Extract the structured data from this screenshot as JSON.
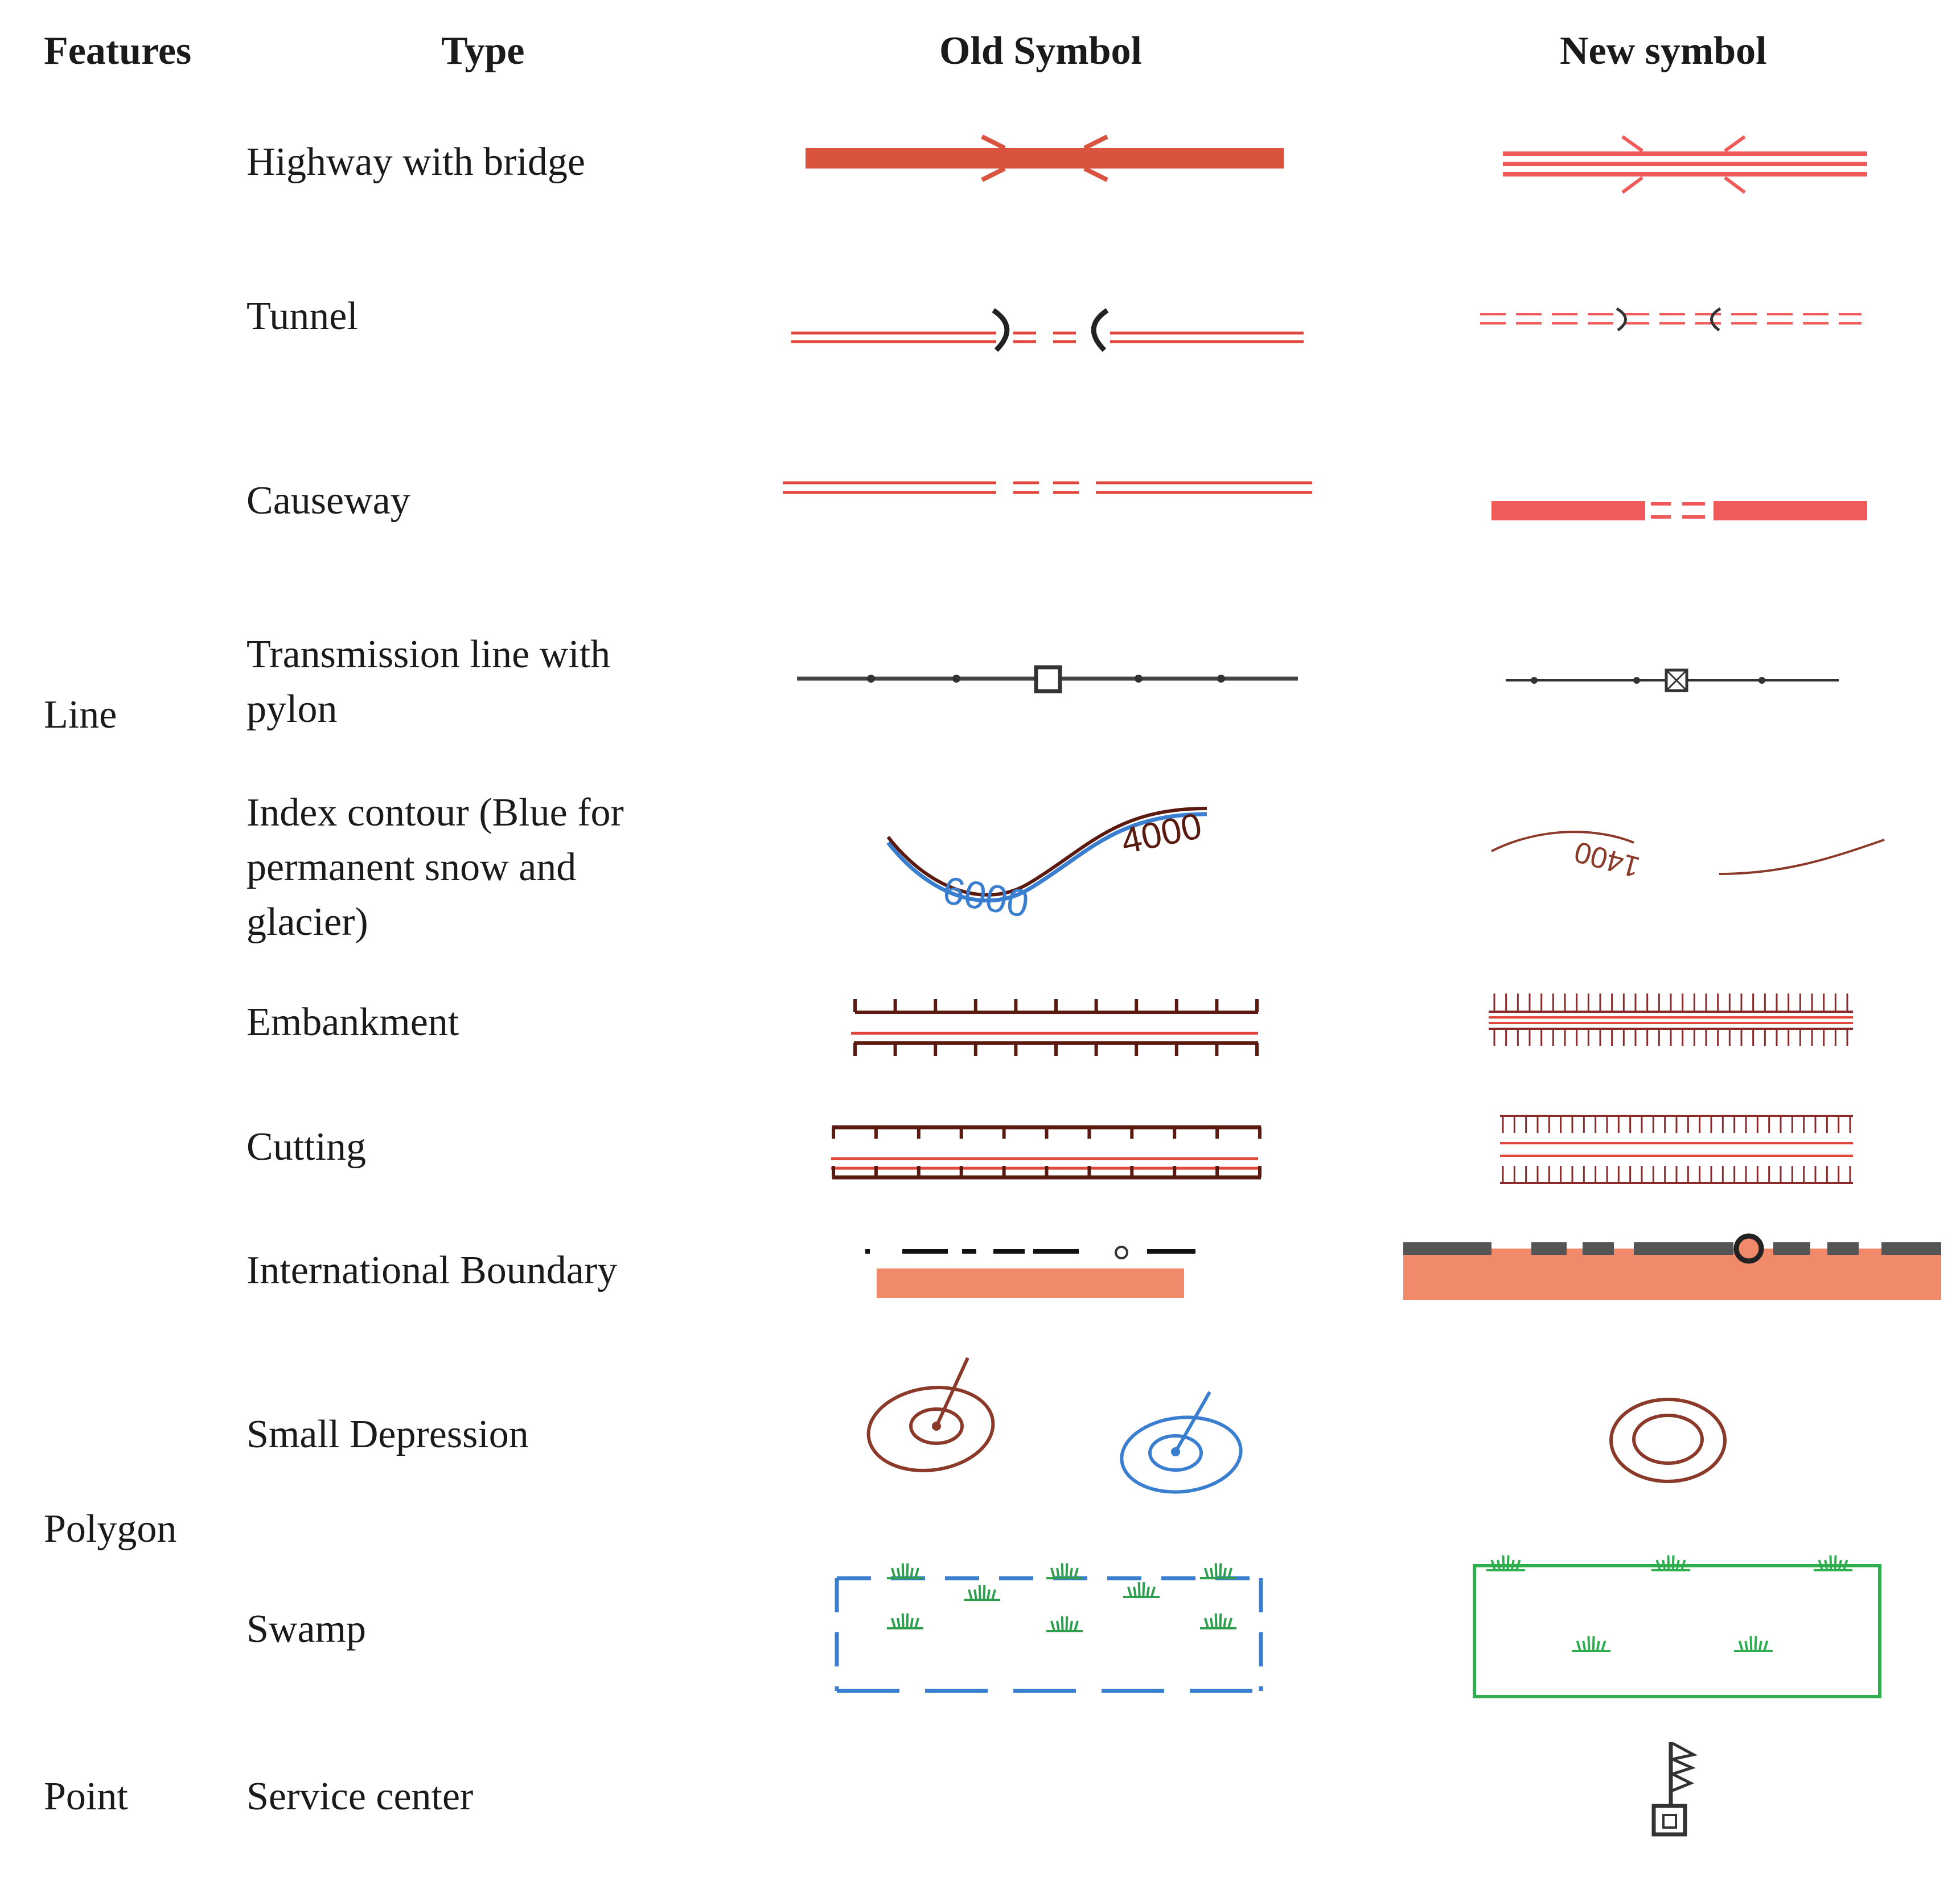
{
  "headers": {
    "features": "Features",
    "type": "Type",
    "old_symbol": "Old Symbol",
    "new_symbol": "New symbol"
  },
  "features": {
    "line": "Line",
    "polygon": "Polygon",
    "point": "Point"
  },
  "rows": [
    {
      "type": "Highway with bridge",
      "feature": "Line"
    },
    {
      "type": "Tunnel",
      "feature": "Line"
    },
    {
      "type": "Causeway",
      "feature": "Line"
    },
    {
      "type_lines": [
        "Transmission line with",
        "pylon"
      ],
      "feature": "Line"
    },
    {
      "type_lines": [
        "Index contour (Blue for",
        "permanent snow and",
        "glacier)"
      ],
      "feature": "Line"
    },
    {
      "type": "Embankment",
      "feature": "Line"
    },
    {
      "type": "Cutting",
      "feature": "Line"
    },
    {
      "type": "International Boundary",
      "feature": "Line"
    },
    {
      "type": "Small Depression",
      "feature": "Polygon"
    },
    {
      "type": "Swamp",
      "feature": "Polygon"
    },
    {
      "type": "Service center",
      "feature": "Point"
    }
  ],
  "symbol_labels": {
    "old_contour_a": "6000",
    "old_contour_b": "4000",
    "new_contour": "1400"
  },
  "colors": {
    "road_red": "#e0473a",
    "light_red": "#ef6f6f",
    "brown": "#8b3a2a",
    "blue": "#3a7fcf",
    "green": "#2fae4f",
    "salmon": "#f08a6a",
    "dark": "#333333"
  }
}
